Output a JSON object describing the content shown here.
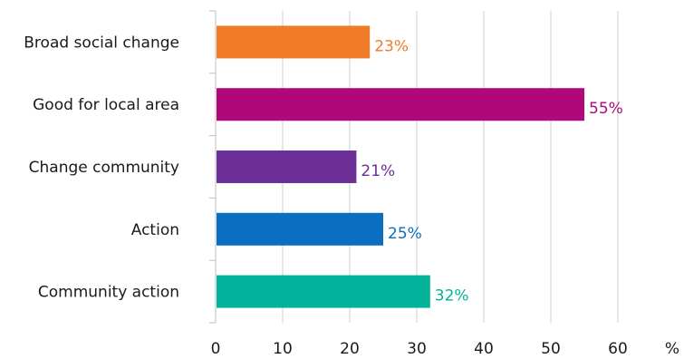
{
  "chart_data": {
    "type": "bar",
    "orientation": "horizontal",
    "title": "",
    "xlabel": "",
    "ylabel": "",
    "x_unit": "%",
    "xlim": [
      0,
      60
    ],
    "x_ticks": [
      0,
      10,
      20,
      30,
      40,
      50,
      60
    ],
    "grid": true,
    "categories": [
      "Broad social change",
      "Good for local area",
      "Change community",
      "Action",
      "Community action"
    ],
    "values": [
      23,
      55,
      21,
      25,
      32
    ],
    "value_labels": [
      "23%",
      "55%",
      "21%",
      "25%",
      "32%"
    ],
    "colors": [
      "#f07c2a",
      "#b0077a",
      "#6b2f96",
      "#0a6fc0",
      "#00b39a"
    ]
  }
}
